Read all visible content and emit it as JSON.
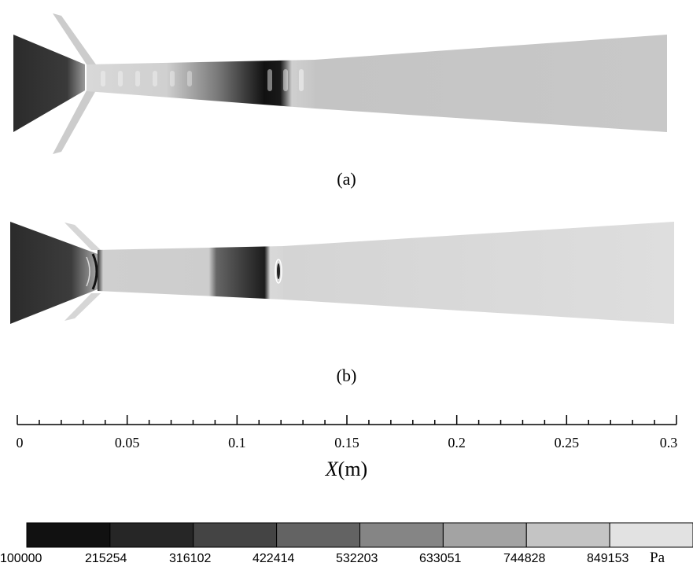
{
  "captions": {
    "a": "(a)",
    "b": "(b)"
  },
  "axis": {
    "label_symbol": "X",
    "label_unit": "(m)",
    "ticks": [
      "0",
      "0.05",
      "0.1",
      "0.15",
      "0.2",
      "0.25",
      "0.3"
    ]
  },
  "colorbar": {
    "values": [
      "100000",
      "215254",
      "316102",
      "422414",
      "532203",
      "633051",
      "744828",
      "849153"
    ],
    "unit": "Pa",
    "colors": [
      "#111111",
      "#262626",
      "#444444",
      "#636363",
      "#858585",
      "#a3a3a3",
      "#c4c4c4",
      "#e2e2e2"
    ]
  }
}
